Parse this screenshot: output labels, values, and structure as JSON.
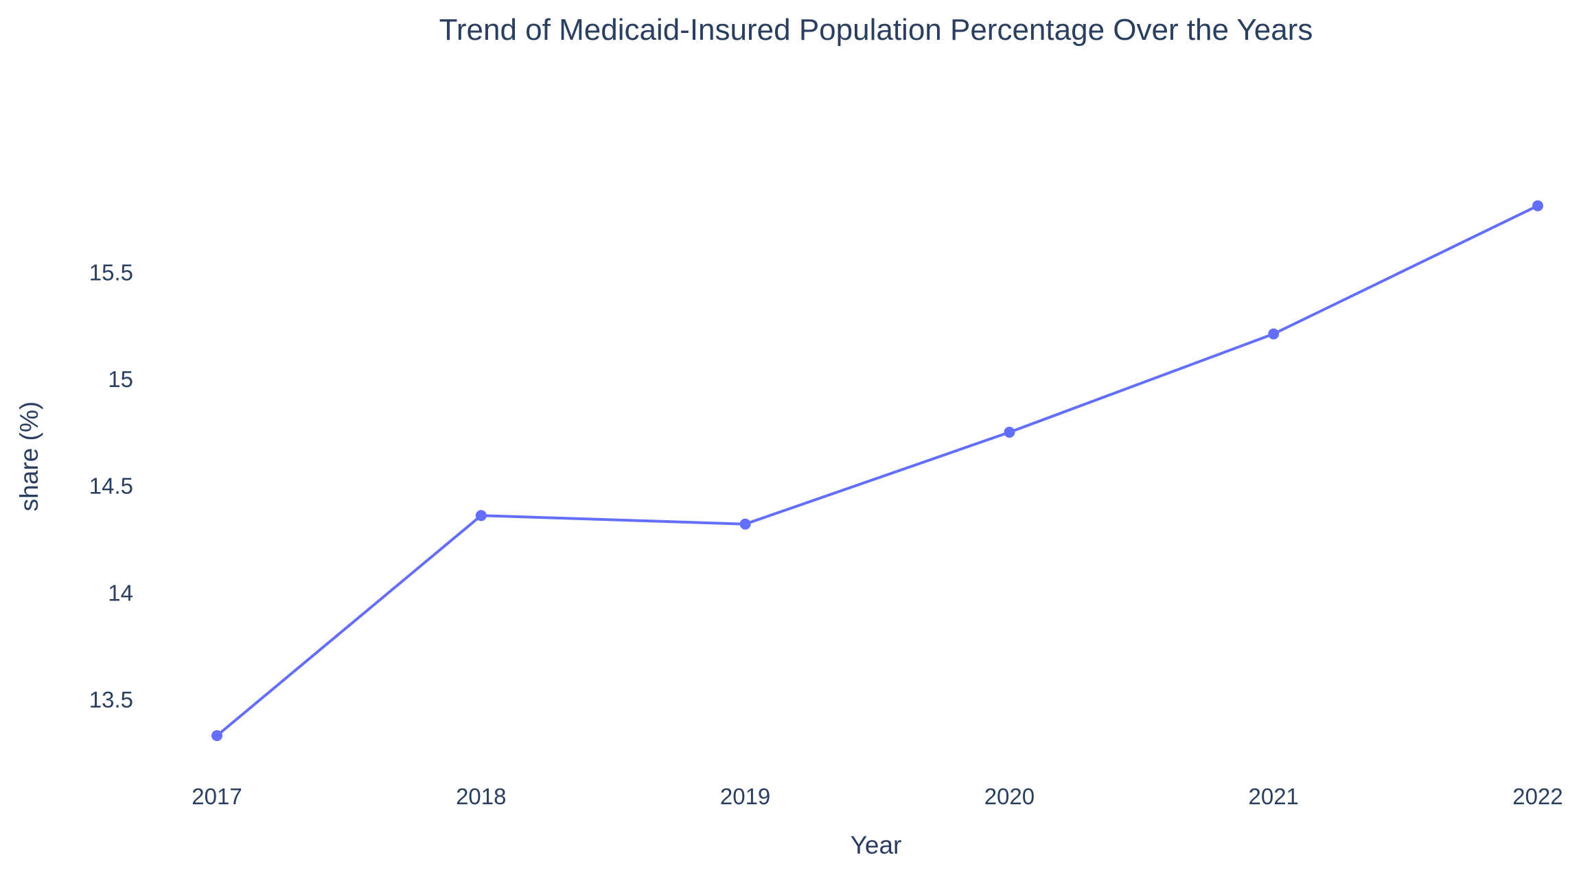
{
  "chart_data": {
    "type": "line",
    "title": "Trend of Medicaid-Insured Population Percentage  Over the Years",
    "xlabel": "Year",
    "ylabel": "share (%)",
    "x": [
      2017,
      2018,
      2019,
      2020,
      2021,
      2022
    ],
    "series": [
      {
        "values": [
          13.33,
          14.36,
          14.32,
          14.75,
          15.21,
          15.81
        ]
      }
    ],
    "yticks": [
      13.5,
      14,
      14.5,
      15,
      15.5
    ],
    "ytick_labels": [
      "13.5",
      "14",
      "14.5",
      "15",
      "15.5"
    ],
    "xtick_labels": [
      "2017",
      "2018",
      "2019",
      "2020",
      "2021",
      "2022"
    ],
    "ylim": [
      13.24,
      16.06
    ],
    "xlim": [
      2017,
      2022
    ],
    "grid": false,
    "legend": "none",
    "markers": true
  },
  "colors": {
    "line": "#636efa",
    "text": "#2a3f5f",
    "background": "#ffffff"
  }
}
